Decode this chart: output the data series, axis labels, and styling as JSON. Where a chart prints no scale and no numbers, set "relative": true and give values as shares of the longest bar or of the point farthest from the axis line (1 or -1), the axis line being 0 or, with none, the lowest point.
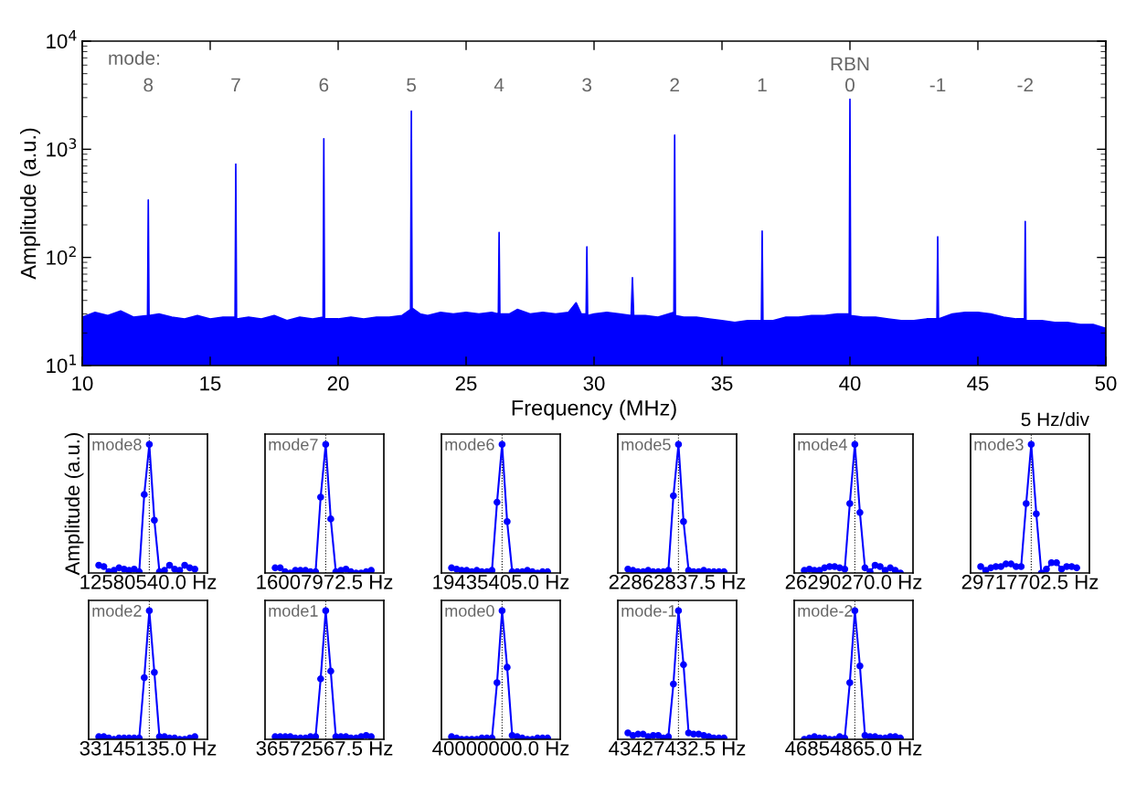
{
  "chart_data": [
    {
      "type": "area",
      "xlabel": "Frequency (MHz)",
      "ylabel": "Amplitude (a.u.)",
      "log": "y",
      "grid": false,
      "xlim": [
        10,
        50
      ],
      "xticks": [
        10,
        15,
        20,
        25,
        30,
        35,
        40,
        45,
        50
      ],
      "ylim": [
        10,
        10000
      ],
      "yticks": [
        {
          "value": 10,
          "label": "10$^{1}$"
        },
        {
          "value": 100,
          "label": "10$^{2}$"
        },
        {
          "value": 1000,
          "label": "10$^{3}$"
        },
        {
          "value": 10000,
          "label": "10$^{4}$"
        }
      ],
      "series": [
        {
          "color": "#0000ff",
          "x": [
            10.0,
            10.5,
            11.0,
            11.5,
            12.0,
            12.55,
            12.58,
            12.61,
            13.0,
            13.5,
            14.0,
            14.5,
            15.0,
            15.5,
            15.97,
            16.0,
            16.03,
            16.5,
            17.0,
            17.5,
            18.0,
            18.5,
            19.0,
            19.41,
            19.44,
            19.47,
            20.0,
            20.5,
            21.0,
            21.5,
            22.0,
            22.5,
            22.83,
            22.86,
            22.89,
            23.2,
            23.5,
            24.0,
            24.5,
            25.0,
            25.5,
            26.0,
            26.26,
            26.29,
            26.32,
            26.7,
            27.0,
            27.5,
            28.0,
            28.5,
            29.0,
            29.3,
            29.5,
            29.69,
            29.72,
            29.75,
            30.0,
            30.5,
            31.0,
            31.45,
            31.5,
            31.55,
            32.0,
            32.5,
            33.12,
            33.15,
            33.18,
            33.5,
            34.0,
            34.5,
            35.0,
            35.5,
            36.0,
            36.54,
            36.57,
            36.6,
            37.0,
            37.5,
            38.0,
            38.5,
            39.0,
            39.5,
            39.97,
            40.0,
            40.03,
            40.5,
            41.0,
            41.5,
            42.0,
            42.5,
            43.0,
            43.4,
            43.43,
            43.46,
            44.0,
            44.5,
            45.0,
            45.5,
            46.0,
            46.5,
            46.82,
            46.85,
            46.88,
            47.5,
            48.0,
            48.5,
            49.0,
            49.5,
            50.0
          ],
          "values": [
            28,
            31,
            29,
            32,
            28,
            29,
            340,
            29,
            30,
            28,
            27,
            29,
            27,
            28,
            28,
            730,
            27,
            28,
            27,
            29,
            26,
            28,
            27,
            28,
            1250,
            27,
            27,
            28,
            27,
            28,
            28,
            29,
            33,
            2250,
            34,
            30,
            29,
            31,
            30,
            31,
            30,
            31,
            30,
            170,
            30,
            30,
            33,
            30,
            31,
            30,
            31,
            38,
            30,
            30,
            125,
            29,
            30,
            31,
            30,
            29,
            65,
            29,
            29,
            28,
            31,
            1350,
            29,
            28,
            28,
            27,
            26,
            25,
            26,
            26,
            175,
            26,
            26,
            28,
            28,
            29,
            29,
            30,
            30,
            2900,
            29,
            28,
            28,
            27,
            26,
            26,
            27,
            27,
            155,
            27,
            30,
            31,
            31,
            30,
            28,
            27,
            27,
            215,
            26,
            26,
            25,
            25,
            24,
            24,
            22
          ]
        }
      ],
      "annotations": [
        "mode:",
        "8",
        "7",
        "6",
        "5",
        "4",
        "3",
        "2",
        "1",
        "RBN",
        "0",
        "-1",
        "-2"
      ]
    },
    {
      "type": "line",
      "relative": true,
      "marker": "circle",
      "line_style": "solid",
      "ylabel": "Amplitude (a.u.)",
      "xlabel": "12580540.0 Hz",
      "categories": [
        null,
        null,
        null,
        null,
        null,
        null,
        null,
        null,
        null,
        null,
        null,
        null,
        null,
        null,
        null,
        null,
        null,
        null,
        null,
        null
      ],
      "series": [
        {
          "color": "#0000ff",
          "values": [
            0.06,
            0.05,
            0.01,
            0.02,
            0.04,
            0.03,
            0.02,
            0.03,
            0.01,
            0.61,
            1,
            0.41,
            0.01,
            0.02,
            0.06,
            0.03,
            0.02,
            0.06,
            0.04,
            0.03
          ]
        }
      ],
      "annotations": [
        "mode8"
      ]
    },
    {
      "type": "line",
      "relative": true,
      "marker": "circle",
      "line_style": "solid",
      "xlabel": "16007972.5 Hz",
      "categories": [
        null,
        null,
        null,
        null,
        null,
        null,
        null,
        null,
        null,
        null,
        null,
        null,
        null,
        null,
        null,
        null,
        null,
        null,
        null,
        null
      ],
      "series": [
        {
          "color": "#0000ff",
          "values": [
            0.04,
            0.04,
            0.01,
            0.0,
            0.02,
            0.02,
            0.02,
            0.01,
            0.01,
            0.59,
            1,
            0.42,
            0.01,
            0.02,
            0.03,
            0.01,
            0.0,
            0.0,
            0.01,
            0.02
          ]
        }
      ],
      "annotations": [
        "mode7"
      ]
    },
    {
      "type": "line",
      "relative": true,
      "marker": "circle",
      "line_style": "solid",
      "xlabel": "19435405.0 Hz",
      "categories": [
        null,
        null,
        null,
        null,
        null,
        null,
        null,
        null,
        null,
        null,
        null,
        null,
        null,
        null,
        null,
        null,
        null,
        null,
        null,
        null
      ],
      "series": [
        {
          "color": "#0000ff",
          "values": [
            0.04,
            0.03,
            0.02,
            0.02,
            0.01,
            0.02,
            0.01,
            0.01,
            0.02,
            0.55,
            1,
            0.4,
            0.01,
            0.01,
            0.01,
            0.02,
            0.01,
            0.0,
            0.01,
            0.01
          ]
        }
      ],
      "annotations": [
        "mode6"
      ]
    },
    {
      "type": "line",
      "relative": true,
      "marker": "circle",
      "line_style": "solid",
      "xlabel": "22862837.5 Hz",
      "categories": [
        null,
        null,
        null,
        null,
        null,
        null,
        null,
        null,
        null,
        null,
        null,
        null,
        null,
        null,
        null,
        null,
        null,
        null,
        null,
        null
      ],
      "series": [
        {
          "color": "#0000ff",
          "values": [
            0.03,
            0.02,
            0.01,
            0.01,
            0.02,
            0.01,
            0.01,
            0.01,
            0.02,
            0.6,
            1,
            0.4,
            0.02,
            0.01,
            0.01,
            0.02,
            0.01,
            0.01,
            0.01,
            0.01
          ]
        }
      ],
      "annotations": [
        "mode5"
      ]
    },
    {
      "type": "line",
      "relative": true,
      "marker": "circle",
      "line_style": "solid",
      "xlabel": "26290270.0 Hz",
      "categories": [
        null,
        null,
        null,
        null,
        null,
        null,
        null,
        null,
        null,
        null,
        null,
        null,
        null,
        null,
        null,
        null,
        null,
        null,
        null,
        null
      ],
      "series": [
        {
          "color": "#0000ff",
          "values": [
            0.02,
            0.03,
            0.02,
            0.02,
            0.04,
            0.05,
            0.05,
            0.04,
            0.03,
            0.54,
            1,
            0.47,
            0.04,
            0.01,
            0.06,
            0.05,
            0.02,
            0.04,
            0.02,
            0.0
          ]
        }
      ],
      "annotations": [
        "mode4"
      ]
    },
    {
      "type": "line",
      "relative": true,
      "marker": "circle",
      "line_style": "solid",
      "xlabel": "29717702.5 Hz",
      "categories": [
        null,
        null,
        null,
        null,
        null,
        null,
        null,
        null,
        null,
        null,
        null,
        null,
        null,
        null,
        null,
        null,
        null,
        null,
        null,
        null
      ],
      "series": [
        {
          "color": "#0000ff",
          "values": [
            0.05,
            0.02,
            0.04,
            0.05,
            0.05,
            0.07,
            0.07,
            0.05,
            0.05,
            0.54,
            1,
            0.46,
            0.0,
            0.03,
            0.08,
            0.08,
            0.03,
            0.05,
            0.05,
            0.04
          ]
        }
      ],
      "annotations": [
        "mode3",
        "5 Hz/div"
      ]
    },
    {
      "type": "line",
      "relative": true,
      "marker": "circle",
      "line_style": "solid",
      "xlabel": "33145135.0 Hz",
      "categories": [
        null,
        null,
        null,
        null,
        null,
        null,
        null,
        null,
        null,
        null,
        null,
        null,
        null,
        null,
        null,
        null,
        null,
        null,
        null,
        null
      ],
      "series": [
        {
          "color": "#0000ff",
          "values": [
            0.02,
            0.02,
            0.01,
            0.0,
            0.01,
            0.01,
            0.01,
            0.01,
            0.01,
            0.48,
            1,
            0.52,
            0.02,
            0.02,
            0.01,
            0.01,
            0.0,
            0.0,
            0.01,
            0.02
          ]
        }
      ],
      "annotations": [
        "mode2"
      ]
    },
    {
      "type": "line",
      "relative": true,
      "marker": "circle",
      "line_style": "solid",
      "xlabel": "36572567.5 Hz",
      "categories": [
        null,
        null,
        null,
        null,
        null,
        null,
        null,
        null,
        null,
        null,
        null,
        null,
        null,
        null,
        null,
        null,
        null,
        null,
        null,
        null
      ],
      "series": [
        {
          "color": "#0000ff",
          "values": [
            0.02,
            0.02,
            0.02,
            0.02,
            0.01,
            0.01,
            0.01,
            0.02,
            0.02,
            0.47,
            1,
            0.53,
            0.02,
            0.02,
            0.02,
            0.01,
            0.01,
            0.02,
            0.03,
            0.02
          ]
        }
      ],
      "annotations": [
        "mode1"
      ]
    },
    {
      "type": "line",
      "relative": true,
      "marker": "circle",
      "line_style": "solid",
      "xlabel": "40000000.0 Hz",
      "categories": [
        null,
        null,
        null,
        null,
        null,
        null,
        null,
        null,
        null,
        null,
        null,
        null,
        null,
        null,
        null,
        null,
        null,
        null,
        null,
        null
      ],
      "series": [
        {
          "color": "#0000ff",
          "values": [
            0.02,
            0.01,
            0.0,
            0.0,
            0.0,
            0.0,
            0.01,
            0.01,
            0.01,
            0.44,
            1,
            0.56,
            0.03,
            0.02,
            0.01,
            0.0,
            0.0,
            0.01,
            0.01,
            0.01
          ]
        }
      ],
      "annotations": [
        "mode0"
      ]
    },
    {
      "type": "line",
      "relative": true,
      "marker": "circle",
      "line_style": "solid",
      "xlabel": "43427432.5 Hz",
      "categories": [
        null,
        null,
        null,
        null,
        null,
        null,
        null,
        null,
        null,
        null,
        null,
        null,
        null,
        null,
        null,
        null,
        null,
        null,
        null,
        null
      ],
      "series": [
        {
          "color": "#0000ff",
          "values": [
            0.05,
            0.03,
            0.04,
            0.04,
            0.02,
            0.03,
            0.03,
            0.01,
            0.02,
            0.43,
            1,
            0.58,
            0.05,
            0.04,
            0.04,
            0.03,
            0.02,
            0.01,
            0.01,
            0.01
          ]
        }
      ],
      "annotations": [
        "mode-1"
      ]
    },
    {
      "type": "line",
      "relative": true,
      "marker": "circle",
      "line_style": "solid",
      "xlabel": "46854865.0 Hz",
      "categories": [
        null,
        null,
        null,
        null,
        null,
        null,
        null,
        null,
        null,
        null,
        null,
        null,
        null,
        null,
        null,
        null,
        null,
        null,
        null,
        null
      ],
      "series": [
        {
          "color": "#0000ff",
          "values": [
            0.0,
            0.01,
            0.02,
            0.01,
            0.01,
            0.0,
            0.0,
            0.02,
            0.01,
            0.44,
            1,
            0.57,
            0.03,
            0.02,
            0.02,
            0.01,
            0.01,
            0.02,
            0.02,
            0.01
          ]
        }
      ],
      "annotations": [
        "mode-2"
      ]
    }
  ]
}
